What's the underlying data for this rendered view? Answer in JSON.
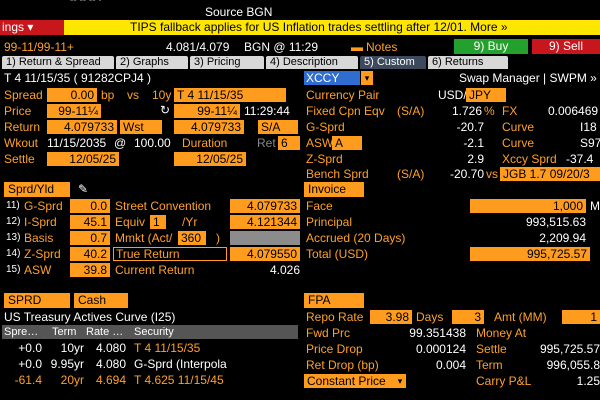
{
  "topbar": {
    "frag": "-- -- -- ·",
    "source_label": "Source BGN",
    "left_menu": "ings ▾",
    "ticker": "TIPS fallback applies for US Inflation trades settling after 12/01. More »"
  },
  "header": {
    "date_range": "99-11/99-11+",
    "prices": "4.081/4.079",
    "bgn_time": "BGN @ 11:29",
    "notes_label": "Notes",
    "buy_label": "9) Buy",
    "sell_label": "9) Sell"
  },
  "tabs": [
    "1) Return & Spread",
    "2) Graphs",
    "3) Pricing",
    "4) Description",
    "5) Custom",
    "6) Returns"
  ],
  "security": {
    "title": "T 4 11/15/35 ( 91282CPJ4 )",
    "spread_label": "Spread",
    "spread_value": "0.00",
    "spread_unit": "bp",
    "vs_label": "vs",
    "vs_tenor": "10y",
    "vs_security": "T 4 11/15/35",
    "price_label": "Price",
    "price_value": "99-11¼",
    "price_value2": "99-11¼",
    "price_time": "11:29:44",
    "return_label": "Return",
    "return_value": "4.079733",
    "return_basis": "Wst",
    "return_value2": "4.079733",
    "return_freq": "S/A",
    "workout_label": "Wkout",
    "workout_date": "11/15/2035",
    "workout_at": "@",
    "workout_price": "100.00",
    "duration_label": "Duration",
    "ret_label": "Ret",
    "ret_value": "6",
    "settle_label": "Settle",
    "settle_value": "12/05/25",
    "settle_value2": "12/05/25"
  },
  "swap": {
    "xccy_label": "XCCY",
    "manager_label": "Swap Manager | SWPM »",
    "currency_pair_label": "Currency Pair",
    "currency_pair_value": "USD/",
    "currency_pair_sel": "JPY",
    "fixed_cpn_label": "Fixed Cpn Eqv",
    "fixed_cpn_freq": "(S/A)",
    "fixed_cpn_value": "1.726",
    "fixed_cpn_pct": "%",
    "fx_label": "FX",
    "fx_value": "0.006469",
    "gsprd_label": "G-Sprd",
    "gsprd_value": "-20.7",
    "curve_label": "Curve",
    "curve1_value": "I18",
    "asw_label": "ASW",
    "asw_sel": "A",
    "asw_value": "-2.1",
    "curve2_value": "S97",
    "zsprd_label": "Z-Sprd",
    "zsprd_value": "2.9",
    "xccy_sprd_label": "Xccy Sprd",
    "xccy_sprd_value": "-37.4",
    "bench_label": "Bench Sprd",
    "bench_freq": "(S/A)",
    "bench_value": "-20.70",
    "bench_vs": "vs",
    "bench_security": "JGB 1.7 09/20/3"
  },
  "spread_panel": {
    "header": "Sprd/Yld",
    "rows": [
      {
        "num": "11)",
        "label": "G-Sprd",
        "value": "0.0"
      },
      {
        "num": "12)",
        "label": "I-Sprd",
        "value": "45.1"
      },
      {
        "num": "13)",
        "label": "Basis",
        "value": "0.7"
      },
      {
        "num": "14)",
        "label": "Z-Sprd",
        "value": "40.2"
      },
      {
        "num": "15)",
        "label": "ASW",
        "value": "39.8"
      }
    ],
    "street_label": "Street Convention",
    "street_value": "4.079733",
    "equiv_label": "Equiv",
    "equiv_sel": "1",
    "equiv_yr": "/Yr",
    "equiv_value": "4.121344",
    "mmkt_label": "Mmkt (Act/",
    "mmkt_sel": "360",
    "mmkt_close": ")",
    "true_return_label": "True Return",
    "true_return_value": "4.079550",
    "current_return_label": "Current Return",
    "current_return_value": "4.026"
  },
  "invoice": {
    "header": "Invoice",
    "face_label": "Face",
    "face_value": "1,000",
    "face_unit": "M",
    "principal_label": "Principal",
    "principal_value": "993,515.63",
    "accrued_label": "Accrued (20 Days)",
    "accrued_value": "2,209.94",
    "total_label": "Total (USD)",
    "total_value": "995,725.57"
  },
  "curve_panel": {
    "sprd_sel": "SPRD",
    "cash_sel": "Cash",
    "title": "US Treasury Actives Curve (I25)",
    "columns": [
      "Spre…",
      "Term",
      "Rate …",
      "Security"
    ],
    "rows": [
      {
        "spread": "+0.0",
        "term": "10yr",
        "rate": "4.080",
        "security": "T 4 11/15/35"
      },
      {
        "spread": "+0.0",
        "term": "9.95yr",
        "rate": "4.080",
        "security": "G-Sprd (Interpola"
      },
      {
        "spread": "-61.4",
        "term": "20yr",
        "rate": "4.694",
        "security": "T 4.625 11/15/45"
      }
    ]
  },
  "fpa": {
    "header": "FPA",
    "repo_label": "Repo Rate",
    "repo_value": "3.98",
    "days_label": "Days",
    "days_value": "3",
    "amt_label": "Amt (MM)",
    "amt_value": "1",
    "fwd_label": "Fwd Prc",
    "fwd_value": "99.351438",
    "money_at_label": "Money At",
    "price_drop_label": "Price Drop",
    "price_drop_value": "0.000124",
    "settle_label": "Settle",
    "settle_value": "995,725.57",
    "ret_drop_label": "Ret Drop (bp)",
    "ret_drop_value": "0.004",
    "term_label": "Term",
    "term_value": "996,055.8",
    "constant_price_label": "Constant Price",
    "carry_label": "Carry P&L",
    "carry_value": "1.25"
  },
  "colors": {
    "orange": "#ff9c1e",
    "amber_text": "#ffa028",
    "ticker_yellow": "#ffe600",
    "buy_green": "#23a12c",
    "sell_red": "#c8161d"
  }
}
